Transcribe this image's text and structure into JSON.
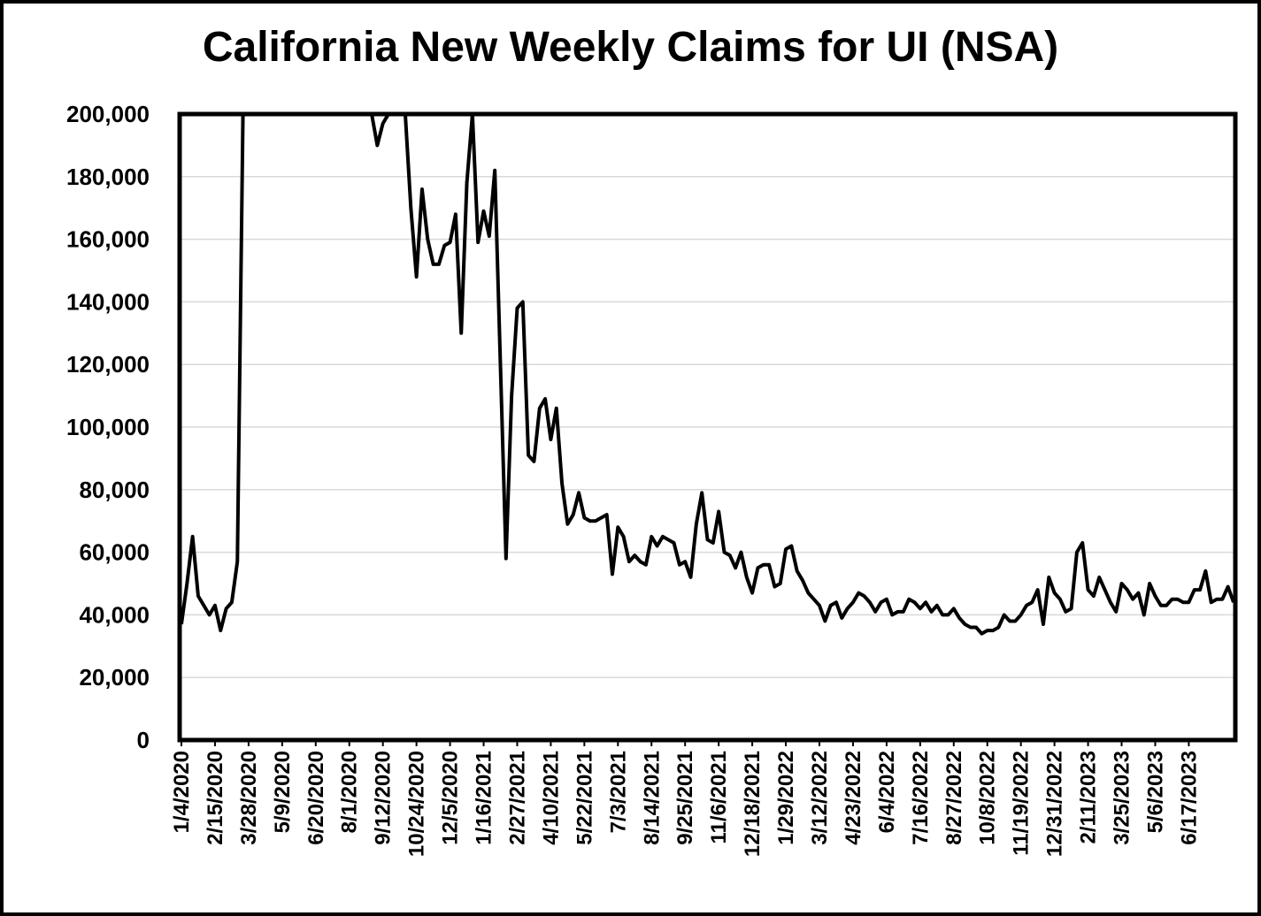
{
  "chart_data": {
    "type": "line",
    "title": "California New Weekly Claims for UI (NSA)",
    "xlabel": "",
    "ylabel": "",
    "ylim": [
      0,
      200000
    ],
    "yticks": [
      "0",
      "20,000",
      "40,000",
      "60,000",
      "80,000",
      "100,000",
      "120,000",
      "140,000",
      "160,000",
      "180,000",
      "200,000"
    ],
    "x_tick_labels": [
      "1/4/2020",
      "2/15/2020",
      "3/28/2020",
      "5/9/2020",
      "6/20/2020",
      "8/1/2020",
      "9/12/2020",
      "10/24/2020",
      "12/5/2020",
      "1/16/2021",
      "2/27/2021",
      "4/10/2021",
      "5/22/2021",
      "7/3/2021",
      "8/14/2021",
      "9/25/2021",
      "11/6/2021",
      "12/18/2021",
      "1/29/2022",
      "3/12/2022",
      "4/23/2022",
      "6/4/2022",
      "7/16/2022",
      "8/27/2022",
      "10/8/2022",
      "11/19/2022",
      "12/31/2022",
      "2/11/2023",
      "3/25/2023",
      "5/6/2023",
      "6/17/2023"
    ],
    "x_start": "1/4/2020",
    "x_end": "7/29/2023",
    "grid": true,
    "legend": "none",
    "line_color": "#000000",
    "series": [
      {
        "values": [
          [
            0,
            37000
          ],
          [
            1,
            50000
          ],
          [
            2,
            65000
          ],
          [
            3,
            46000
          ],
          [
            4,
            43000
          ],
          [
            5,
            40000
          ],
          [
            6,
            43000
          ],
          [
            7,
            35000
          ],
          [
            8,
            42000
          ],
          [
            9,
            44000
          ],
          [
            10,
            57000
          ],
          [
            11,
            200000
          ],
          [
            34,
            200000
          ],
          [
            35,
            190000
          ],
          [
            36,
            197000
          ],
          [
            37,
            200000
          ],
          [
            40,
            200000
          ],
          [
            41,
            170000
          ],
          [
            42,
            148000
          ],
          [
            43,
            176000
          ],
          [
            44,
            160000
          ],
          [
            45,
            152000
          ],
          [
            46,
            152000
          ],
          [
            47,
            158000
          ],
          [
            48,
            159000
          ],
          [
            49,
            168000
          ],
          [
            50,
            130000
          ],
          [
            51,
            178000
          ],
          [
            52,
            200000
          ],
          [
            53,
            159000
          ],
          [
            54,
            169000
          ],
          [
            55,
            161000
          ],
          [
            56,
            182000
          ],
          [
            57,
            120000
          ],
          [
            58,
            58000
          ],
          [
            59,
            110000
          ],
          [
            60,
            138000
          ],
          [
            61,
            140000
          ],
          [
            62,
            91000
          ],
          [
            63,
            89000
          ],
          [
            64,
            106000
          ],
          [
            65,
            109000
          ],
          [
            66,
            96000
          ],
          [
            67,
            106000
          ],
          [
            68,
            82000
          ],
          [
            69,
            69000
          ],
          [
            70,
            72000
          ],
          [
            71,
            79000
          ],
          [
            72,
            71000
          ],
          [
            73,
            70000
          ],
          [
            74,
            70000
          ],
          [
            75,
            71000
          ],
          [
            76,
            72000
          ],
          [
            77,
            53000
          ],
          [
            78,
            68000
          ],
          [
            79,
            65000
          ],
          [
            80,
            57000
          ],
          [
            81,
            59000
          ],
          [
            82,
            57000
          ],
          [
            83,
            56000
          ],
          [
            84,
            65000
          ],
          [
            85,
            62000
          ],
          [
            86,
            65000
          ],
          [
            87,
            64000
          ],
          [
            88,
            63000
          ],
          [
            89,
            56000
          ],
          [
            90,
            57000
          ],
          [
            91,
            52000
          ],
          [
            92,
            69000
          ],
          [
            93,
            79000
          ],
          [
            94,
            64000
          ],
          [
            95,
            63000
          ],
          [
            96,
            73000
          ],
          [
            97,
            60000
          ],
          [
            98,
            59000
          ],
          [
            99,
            55000
          ],
          [
            100,
            60000
          ],
          [
            101,
            52000
          ],
          [
            102,
            47000
          ],
          [
            103,
            55000
          ],
          [
            104,
            56000
          ],
          [
            105,
            56000
          ],
          [
            106,
            49000
          ],
          [
            107,
            50000
          ],
          [
            108,
            61000
          ],
          [
            109,
            62000
          ],
          [
            110,
            54000
          ],
          [
            111,
            51000
          ],
          [
            112,
            47000
          ],
          [
            113,
            45000
          ],
          [
            114,
            43000
          ],
          [
            115,
            38000
          ],
          [
            116,
            43000
          ],
          [
            117,
            44000
          ],
          [
            118,
            39000
          ],
          [
            119,
            42000
          ],
          [
            120,
            44000
          ],
          [
            121,
            47000
          ],
          [
            122,
            46000
          ],
          [
            123,
            44000
          ],
          [
            124,
            41000
          ],
          [
            125,
            44000
          ],
          [
            126,
            45000
          ],
          [
            127,
            40000
          ],
          [
            128,
            41000
          ],
          [
            129,
            41000
          ],
          [
            130,
            45000
          ],
          [
            131,
            44000
          ],
          [
            132,
            42000
          ],
          [
            133,
            44000
          ],
          [
            134,
            41000
          ],
          [
            135,
            43000
          ],
          [
            136,
            40000
          ],
          [
            137,
            40000
          ],
          [
            138,
            42000
          ],
          [
            139,
            39000
          ],
          [
            140,
            37000
          ],
          [
            141,
            36000
          ],
          [
            142,
            36000
          ],
          [
            143,
            34000
          ],
          [
            144,
            35000
          ],
          [
            145,
            35000
          ],
          [
            146,
            36000
          ],
          [
            147,
            40000
          ],
          [
            148,
            38000
          ],
          [
            149,
            38000
          ],
          [
            150,
            40000
          ],
          [
            151,
            43000
          ],
          [
            152,
            44000
          ],
          [
            153,
            48000
          ],
          [
            154,
            37000
          ],
          [
            155,
            52000
          ],
          [
            156,
            47000
          ],
          [
            157,
            45000
          ],
          [
            158,
            41000
          ],
          [
            159,
            42000
          ],
          [
            160,
            60000
          ],
          [
            161,
            63000
          ],
          [
            162,
            48000
          ],
          [
            163,
            46000
          ],
          [
            164,
            52000
          ],
          [
            165,
            48000
          ],
          [
            166,
            44000
          ],
          [
            167,
            41000
          ],
          [
            168,
            50000
          ],
          [
            169,
            48000
          ],
          [
            170,
            45000
          ],
          [
            171,
            47000
          ],
          [
            172,
            40000
          ],
          [
            173,
            50000
          ],
          [
            174,
            46000
          ],
          [
            175,
            43000
          ],
          [
            176,
            43000
          ],
          [
            177,
            45000
          ],
          [
            178,
            45000
          ],
          [
            179,
            44000
          ],
          [
            180,
            44000
          ],
          [
            181,
            48000
          ],
          [
            182,
            48000
          ],
          [
            183,
            54000
          ],
          [
            184,
            44000
          ],
          [
            185,
            45000
          ],
          [
            186,
            45000
          ],
          [
            187,
            49000
          ],
          [
            188,
            44000
          ]
        ]
      }
    ]
  }
}
